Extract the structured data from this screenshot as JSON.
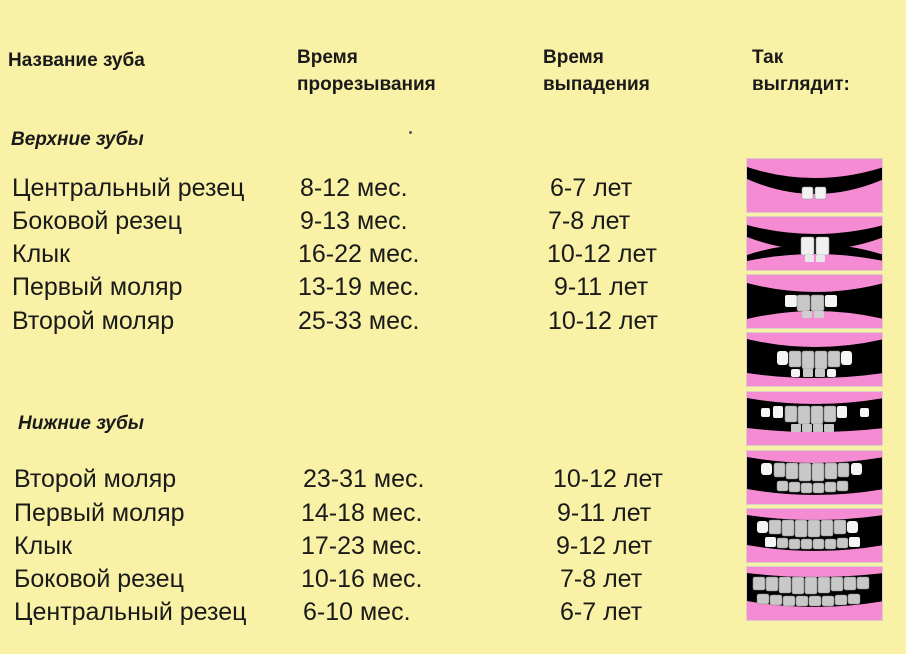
{
  "headers": {
    "name": "Название зуба",
    "eruption": [
      "Время",
      "прорезывания"
    ],
    "loss": [
      "Время",
      "выпадения"
    ],
    "looks": [
      "Так",
      "выглядит:"
    ]
  },
  "upper": {
    "title": "Верхние зубы",
    "rows": [
      {
        "name": "Центральный резец",
        "eruption": "8-12 мес.",
        "loss": "6-7 лет"
      },
      {
        "name": "Боковой резец",
        "eruption": "9-13 мес.",
        "loss": "7-8 лет"
      },
      {
        "name": "Клык",
        "eruption": "16-22 мес.",
        "loss": "10-12 лет"
      },
      {
        "name": "Первый моляр",
        "eruption": "13-19 мес.",
        "loss": "9-11 лет"
      },
      {
        "name": "Второй моляр",
        "eruption": "25-33 мес.",
        "loss": "10-12 лет"
      }
    ]
  },
  "lower": {
    "title": "Нижние зубы",
    "rows": [
      {
        "name": "Второй моляр",
        "eruption": "23-31 мес.",
        "loss": "10-12 лет"
      },
      {
        "name": "Первый моляр",
        "eruption": "14-18 мес.",
        "loss": "9-11 лет"
      },
      {
        "name": "Клык",
        "eruption": "17-23 мес.",
        "loss": "9-12 лет"
      },
      {
        "name": "Боковой резец",
        "eruption": "10-16 мес.",
        "loss": "7-8 лет"
      },
      {
        "name": "Центральный резец",
        "eruption": "6-10 мес.",
        "loss": "6-7 лет"
      }
    ]
  },
  "illustrations": [
    "mouth-stage-1-icon",
    "mouth-stage-2-icon",
    "mouth-stage-3-icon",
    "mouth-stage-4-icon",
    "mouth-stage-5-icon",
    "mouth-stage-6-icon",
    "mouth-stage-7-icon",
    "mouth-stage-8-icon"
  ],
  "colors": {
    "background": "#f8f1a6",
    "gum": "#f58bd3",
    "mouth": "#000000",
    "tooth": "#c8c8c8"
  }
}
